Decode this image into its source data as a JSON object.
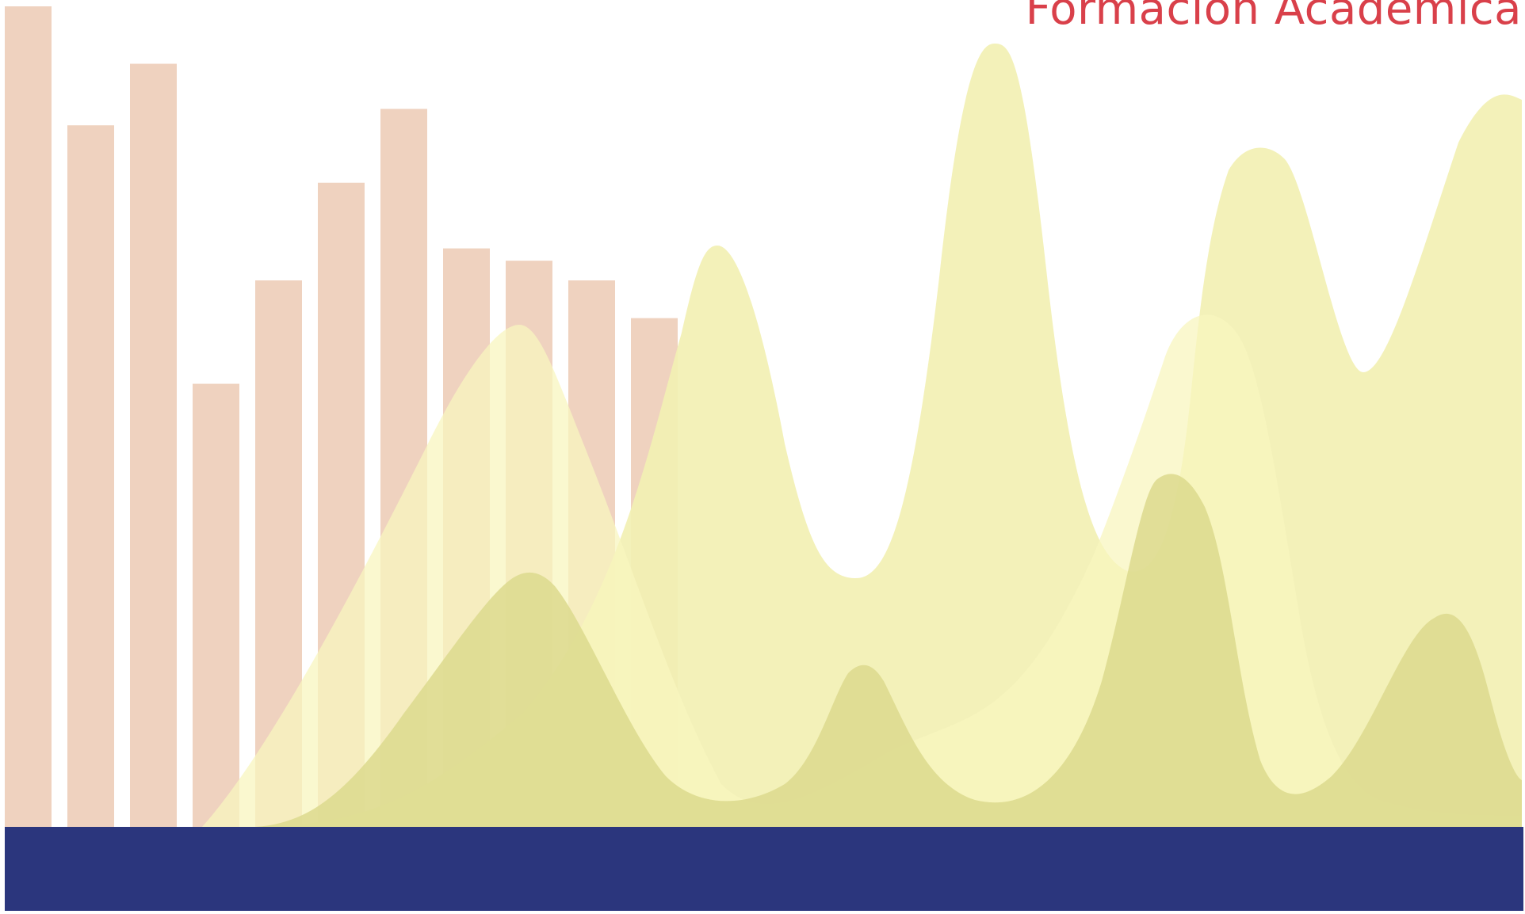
{
  "header": {
    "title": "Formación Académica",
    "title_color": "#d9404a"
  },
  "palette": {
    "background": "#ffffff",
    "bars": "#efd2bf",
    "waves_light": "#f2f0b3",
    "waves_pale": "#f8f6bf",
    "waves_olive": "#dcd98d",
    "footer_band": "#2b367d"
  },
  "graphic": {
    "bar_heights": [
      1.0,
      0.855,
      0.93,
      0.54,
      0.666,
      0.785,
      0.875,
      0.705,
      0.69,
      0.666,
      0.62
    ]
  }
}
